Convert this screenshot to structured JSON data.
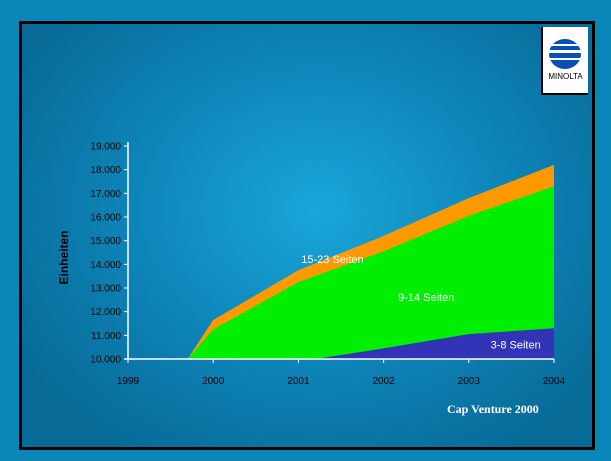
{
  "brand": {
    "logo_text": "MINOLTA",
    "logo_color": "#0a4fb5"
  },
  "source": "Cap Venture 2000",
  "chart_data": {
    "type": "area",
    "stacked": true,
    "categories": [
      "1999",
      "2000",
      "2001",
      "2002",
      "2003",
      "2004"
    ],
    "ylabel": "Einheiten",
    "xlabel": "",
    "ylim": [
      10000,
      19000
    ],
    "yticks": [
      "10.000",
      "11.000",
      "12.000",
      "13.000",
      "14.000",
      "15.000",
      "16.000",
      "17.000",
      "18.000",
      "19.000"
    ],
    "grid": false,
    "legend": "inline labels",
    "series": [
      {
        "name": "3-8 Seiten",
        "color": "#3333b8",
        "points": [
          [
            2001.2,
            10000
          ],
          [
            2002,
            10450
          ],
          [
            2003,
            11050
          ],
          [
            2004,
            11300
          ]
        ]
      },
      {
        "name": "9-14 Seiten",
        "color": "#00ee00",
        "points": [
          [
            1999.7,
            10000
          ],
          [
            2000,
            11250
          ],
          [
            2001,
            13250
          ],
          [
            2002,
            14550
          ],
          [
            2003,
            16050
          ],
          [
            2004,
            17300
          ]
        ]
      },
      {
        "name": "15-23 Seiten",
        "color": "#ff9900",
        "points": [
          [
            1999.7,
            10000
          ],
          [
            2000,
            11650
          ],
          [
            2001,
            13750
          ],
          [
            2002,
            15200
          ],
          [
            2003,
            16800
          ],
          [
            2004,
            18200
          ]
        ]
      }
    ]
  }
}
